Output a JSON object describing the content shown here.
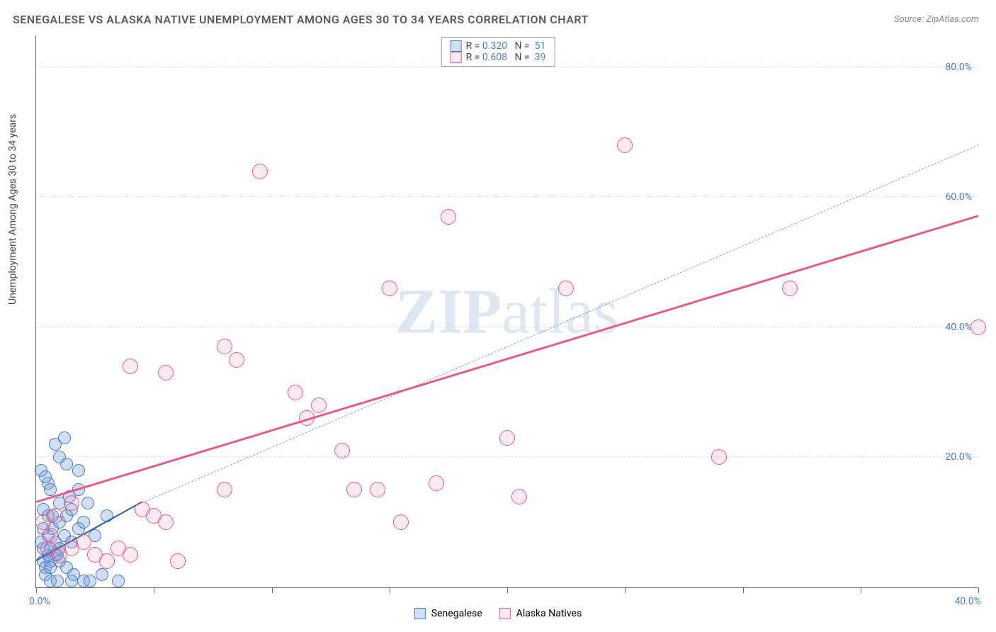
{
  "title": "SENEGALESE VS ALASKA NATIVE UNEMPLOYMENT AMONG AGES 30 TO 34 YEARS CORRELATION CHART",
  "source": "Source: ZipAtlas.com",
  "y_axis_label": "Unemployment Among Ages 30 to 34 years",
  "watermark": {
    "bold": "ZIP",
    "light": "atlas"
  },
  "chart": {
    "type": "scatter",
    "xlim": [
      0,
      40
    ],
    "ylim": [
      0,
      85
    ],
    "x_ticks": [
      0,
      5,
      10,
      15,
      20,
      25,
      30,
      35,
      40
    ],
    "x_tick_labels": {
      "0": "0.0%",
      "40": "40.0%"
    },
    "y_gridlines": [
      20,
      40,
      60,
      80
    ],
    "y_tick_labels": {
      "20": "20.0%",
      "40": "40.0%",
      "60": "60.0%",
      "80": "80.0%"
    },
    "background_color": "#ffffff",
    "grid_color": "#dddddd",
    "axis_color": "#666666",
    "value_text_color": "#4a7ec9",
    "label_text_color": "#444444",
    "title_color": "#5a5a5a",
    "source_color": "#888888",
    "title_fontsize": 16,
    "label_fontsize": 14,
    "tick_fontsize": 14,
    "series": [
      {
        "name": "Senegalese",
        "fill_color": "rgba(120,160,220,0.35)",
        "stroke_color": "#4a7ec9",
        "marker_radius": 9,
        "r_value": "0.320",
        "n_value": "51",
        "trend": {
          "x1": 0,
          "y1": 4,
          "x2": 4.5,
          "y2": 13,
          "color": "#2a5db0",
          "width": 2,
          "dash": false
        },
        "extrap": {
          "x1": 4.5,
          "y1": 13,
          "x2": 40,
          "y2": 68,
          "color": "#7aa3d8",
          "width": 1.5,
          "dash": true
        },
        "points": [
          [
            0.3,
            4
          ],
          [
            0.5,
            5
          ],
          [
            0.6,
            6
          ],
          [
            0.8,
            7
          ],
          [
            0.4,
            3
          ],
          [
            0.6,
            4
          ],
          [
            0.9,
            5
          ],
          [
            1.0,
            6
          ],
          [
            0.5,
            8
          ],
          [
            0.7,
            9
          ],
          [
            1.2,
            8
          ],
          [
            1.5,
            7
          ],
          [
            0.3,
            6
          ],
          [
            0.8,
            5
          ],
          [
            1.0,
            10
          ],
          [
            1.3,
            11
          ],
          [
            1.5,
            12
          ],
          [
            1.8,
            9
          ],
          [
            2.0,
            10
          ],
          [
            0.4,
            2
          ],
          [
            0.6,
            3
          ],
          [
            1.0,
            4
          ],
          [
            1.3,
            3
          ],
          [
            1.6,
            2
          ],
          [
            0.5,
            16
          ],
          [
            0.6,
            15
          ],
          [
            1.0,
            20
          ],
          [
            1.3,
            19
          ],
          [
            1.8,
            18
          ],
          [
            0.3,
            12
          ],
          [
            0.7,
            11
          ],
          [
            1.0,
            13
          ],
          [
            1.4,
            14
          ],
          [
            1.8,
            15
          ],
          [
            2.2,
            13
          ],
          [
            2.5,
            8
          ],
          [
            2.8,
            2
          ],
          [
            3.0,
            11
          ],
          [
            0.2,
            18
          ],
          [
            0.4,
            17
          ],
          [
            0.8,
            22
          ],
          [
            1.2,
            23
          ],
          [
            0.6,
            1
          ],
          [
            0.9,
            1
          ],
          [
            1.5,
            1
          ],
          [
            2.0,
            1
          ],
          [
            2.3,
            1
          ],
          [
            3.5,
            1
          ],
          [
            0.2,
            7
          ],
          [
            0.3,
            9
          ],
          [
            0.5,
            11
          ]
        ]
      },
      {
        "name": "Alaska Natives",
        "fill_color": "rgba(240,150,170,0.2)",
        "stroke_color": "#e85a8a",
        "marker_radius": 11,
        "r_value": "0.608",
        "n_value": "39",
        "trend": {
          "x1": 0,
          "y1": 13,
          "x2": 40,
          "y2": 57,
          "color": "#e85a8a",
          "width": 3,
          "dash": false
        },
        "points": [
          [
            0.5,
            6
          ],
          [
            1.0,
            5
          ],
          [
            1.5,
            6
          ],
          [
            2.0,
            7
          ],
          [
            2.5,
            5
          ],
          [
            3.0,
            4
          ],
          [
            3.5,
            6
          ],
          [
            4.0,
            5
          ],
          [
            0.8,
            11
          ],
          [
            1.5,
            13
          ],
          [
            0.3,
            10
          ],
          [
            0.6,
            8
          ],
          [
            4.5,
            12
          ],
          [
            5.0,
            11
          ],
          [
            5.5,
            10
          ],
          [
            6.0,
            4
          ],
          [
            4.0,
            34
          ],
          [
            5.5,
            33
          ],
          [
            8.0,
            37
          ],
          [
            8.5,
            35
          ],
          [
            9.5,
            64
          ],
          [
            11.0,
            30
          ],
          [
            11.5,
            26
          ],
          [
            12.0,
            28
          ],
          [
            13.0,
            21
          ],
          [
            13.5,
            15
          ],
          [
            14.5,
            15
          ],
          [
            15.5,
            10
          ],
          [
            15.0,
            46
          ],
          [
            17.0,
            16
          ],
          [
            17.5,
            57
          ],
          [
            20.0,
            23
          ],
          [
            20.5,
            14
          ],
          [
            22.5,
            46
          ],
          [
            25.0,
            68
          ],
          [
            29.0,
            20
          ],
          [
            32.0,
            46
          ],
          [
            40.0,
            40
          ],
          [
            8.0,
            15
          ]
        ]
      }
    ]
  },
  "legend_top": [
    {
      "swatch_fill": "rgba(120,160,220,0.35)",
      "swatch_border": "#4a7ec9",
      "r": "0.320",
      "n": "51"
    },
    {
      "swatch_fill": "rgba(240,150,170,0.2)",
      "swatch_border": "#e85a8a",
      "r": "0.608",
      "n": "39"
    }
  ],
  "legend_bottom": [
    {
      "swatch_fill": "rgba(120,160,220,0.35)",
      "swatch_border": "#4a7ec9",
      "label": "Senegalese"
    },
    {
      "swatch_fill": "rgba(240,150,170,0.2)",
      "swatch_border": "#e85a8a",
      "label": "Alaska Natives"
    }
  ]
}
